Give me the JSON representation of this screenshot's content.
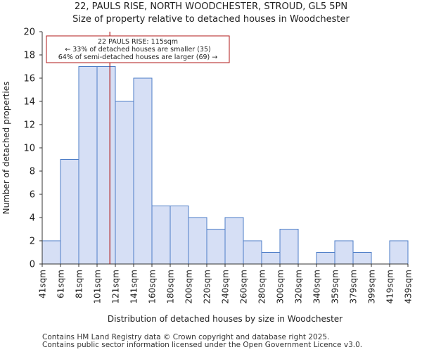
{
  "chart_data": {
    "type": "histogram",
    "title": "22, PAULS RISE, NORTH WOODCHESTER, STROUD, GL5 5PN",
    "subtitle": "Size of property relative to detached houses in Woodchester",
    "xlabel": "Distribution of detached houses by size in Woodchester",
    "ylabel": "Number of detached properties",
    "ylim": [
      0,
      20
    ],
    "yticks": [
      0,
      2,
      4,
      6,
      8,
      10,
      12,
      14,
      16,
      18,
      20
    ],
    "categories": [
      "41sqm",
      "61sqm",
      "81sqm",
      "101sqm",
      "121sqm",
      "141sqm",
      "160sqm",
      "180sqm",
      "200sqm",
      "220sqm",
      "240sqm",
      "260sqm",
      "280sqm",
      "300sqm",
      "320sqm",
      "340sqm",
      "359sqm",
      "379sqm",
      "399sqm",
      "419sqm",
      "439sqm"
    ],
    "values": [
      2,
      9,
      17,
      17,
      14,
      16,
      5,
      5,
      4,
      3,
      4,
      2,
      1,
      3,
      0,
      1,
      2,
      1,
      0,
      2
    ],
    "bar_color": "#d6dff5",
    "bar_edge_color": "#4d7dc7",
    "marker": {
      "value": 115,
      "color": "#b11a1a"
    },
    "annotation": {
      "line1": "22 PAULS RISE: 115sqm",
      "line2": "← 33% of detached houses are smaller (35)",
      "line3": "64% of semi-detached houses are larger (69) →"
    }
  },
  "footer": {
    "line1": "Contains HM Land Registry data © Crown copyright and database right 2025.",
    "line2": "Contains public sector information licensed under the Open Government Licence v3.0."
  }
}
